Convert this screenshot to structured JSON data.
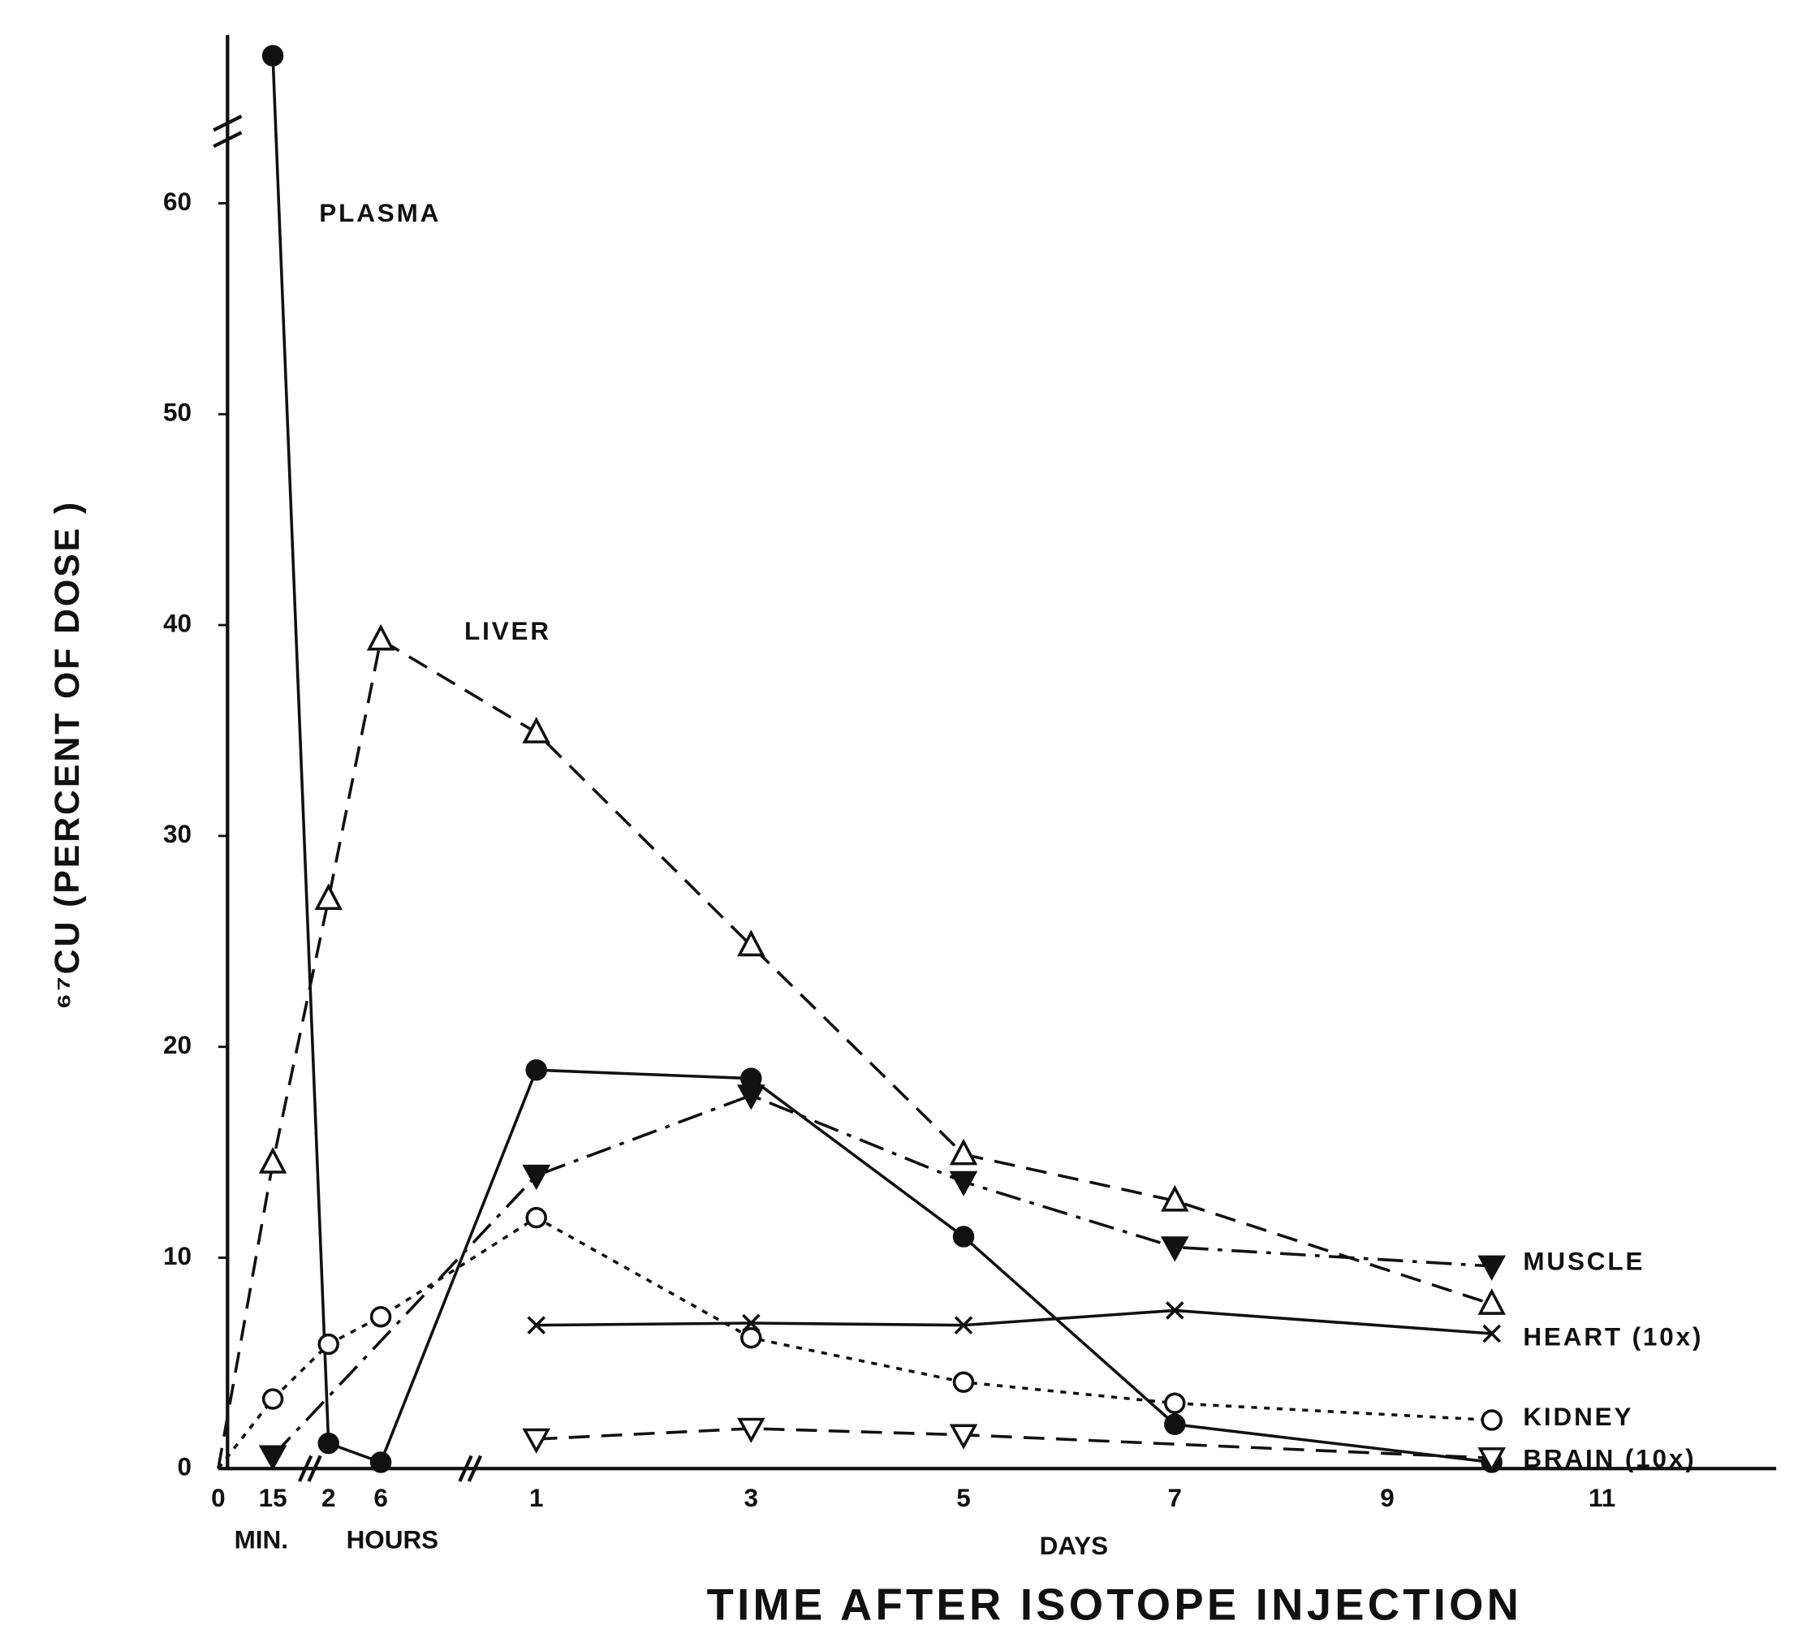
{
  "chart_data": {
    "type": "line",
    "y_label": "⁶⁷CU (PERCENT OF DOSE )",
    "x_label": "TIME AFTER ISOTOPE INJECTION",
    "x_groups": [
      "MIN.",
      "HOURS",
      "DAYS"
    ],
    "categories": [
      "0",
      "15",
      "2",
      "6",
      "1",
      "3",
      "5",
      "7",
      "9",
      null,
      "11"
    ],
    "ylim": [
      0,
      67
    ],
    "yticks": [
      0,
      10,
      20,
      30,
      40,
      50,
      60
    ],
    "series": [
      {
        "name": "PLASMA",
        "color": "#111111",
        "marker": "filled-circle",
        "line_style": "solid",
        "values": [
          null,
          67,
          1.2,
          0.3,
          18.9,
          18.5,
          11.0,
          2.1,
          null,
          0.3,
          null
        ]
      },
      {
        "name": "LIVER",
        "color": "#111111",
        "marker": "open-triangle",
        "line_style": "dashed",
        "values": [
          0,
          14.5,
          27,
          39.3,
          34.9,
          24.8,
          14.9,
          12.7,
          null,
          7.8,
          null
        ]
      },
      {
        "name": "MUSCLE",
        "color": "#111111",
        "marker": "filled-down-triangle",
        "line_style": "dashdot",
        "values": [
          null,
          0.6,
          null,
          null,
          13.9,
          17.7,
          13.6,
          10.5,
          null,
          9.6,
          null
        ]
      },
      {
        "name": "HEART (10x)",
        "color": "#111111",
        "marker": "cross",
        "line_style": "solid",
        "values": [
          null,
          null,
          null,
          null,
          6.8,
          6.9,
          6.8,
          7.5,
          null,
          6.4,
          null
        ]
      },
      {
        "name": "KIDNEY",
        "color": "#111111",
        "marker": "open-circle",
        "line_style": "dotted",
        "values": [
          0,
          3.3,
          5.9,
          7.2,
          11.9,
          6.2,
          4.1,
          3.1,
          null,
          2.3,
          null
        ]
      },
      {
        "name": "BRAIN (10x)",
        "color": "#111111",
        "marker": "open-down-triangle",
        "line_style": "dashed",
        "values": [
          null,
          null,
          null,
          null,
          1.4,
          1.9,
          1.6,
          null,
          null,
          0.5,
          null
        ]
      }
    ]
  }
}
